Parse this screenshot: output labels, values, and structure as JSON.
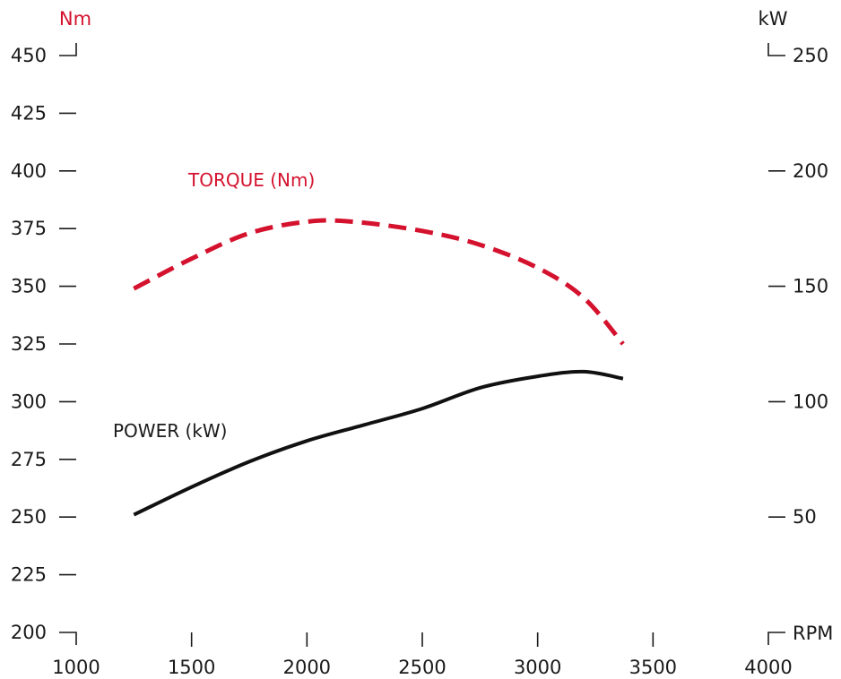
{
  "chart_data": {
    "type": "line",
    "title": "",
    "x": {
      "label": "RPM",
      "range": [
        1000,
        4000
      ],
      "ticks": [
        1000,
        1500,
        2000,
        2500,
        3000,
        3500,
        4000
      ]
    },
    "y_left": {
      "label": "Nm",
      "range": [
        200,
        450
      ],
      "ticks": [
        200,
        225,
        250,
        275,
        300,
        325,
        350,
        375,
        400,
        425,
        450
      ]
    },
    "y_right": {
      "label": "kW",
      "range": [
        0,
        250
      ],
      "ticks": [
        50,
        100,
        150,
        200,
        250
      ]
    },
    "grid": false,
    "series": [
      {
        "name": "TORQUE (Nm)",
        "axis": "left",
        "style": "dashed",
        "color": "#d4122e",
        "points": [
          [
            1250,
            349
          ],
          [
            1500,
            362
          ],
          [
            1750,
            373
          ],
          [
            2000,
            378
          ],
          [
            2200,
            378
          ],
          [
            2500,
            374
          ],
          [
            2750,
            368
          ],
          [
            3000,
            358
          ],
          [
            3200,
            345
          ],
          [
            3370,
            325
          ]
        ]
      },
      {
        "name": "POWER (kW)",
        "axis": "right",
        "style": "solid",
        "color": "#111111",
        "points": [
          [
            1250,
            51
          ],
          [
            1500,
            63
          ],
          [
            1750,
            74
          ],
          [
            2000,
            83
          ],
          [
            2250,
            90
          ],
          [
            2500,
            97
          ],
          [
            2750,
            106
          ],
          [
            3000,
            111
          ],
          [
            3200,
            113
          ],
          [
            3370,
            110
          ]
        ]
      }
    ]
  }
}
